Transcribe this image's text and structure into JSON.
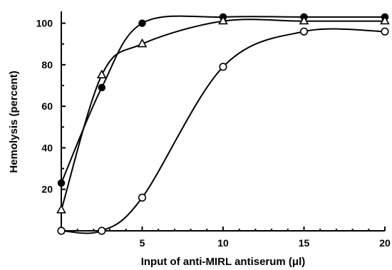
{
  "chart_data": {
    "type": "line",
    "title": "",
    "xlabel": "Input of anti-MIRL antiserum (μl)",
    "ylabel": "Hemolysis (percent)",
    "xlim": [
      0,
      20
    ],
    "ylim": [
      0,
      105
    ],
    "x_ticks": [
      5,
      10,
      15,
      20
    ],
    "y_ticks": [
      20,
      40,
      60,
      80,
      100
    ],
    "x_tick_labels": [
      "5",
      "10",
      "15",
      "20"
    ],
    "y_tick_labels": [
      "20",
      "40",
      "60",
      "80",
      "100"
    ],
    "grid": false,
    "legend": "none",
    "series": [
      {
        "marker": "filled-circle",
        "points": [
          {
            "x": 0,
            "y": 23
          },
          {
            "x": 2.5,
            "y": 69
          },
          {
            "x": 5,
            "y": 100
          },
          {
            "x": 10,
            "y": 103
          },
          {
            "x": 15,
            "y": 103
          },
          {
            "x": 20,
            "y": 103
          }
        ]
      },
      {
        "marker": "open-triangle",
        "points": [
          {
            "x": 0,
            "y": 10
          },
          {
            "x": 2.5,
            "y": 75
          },
          {
            "x": 5,
            "y": 90
          },
          {
            "x": 10,
            "y": 101
          },
          {
            "x": 15,
            "y": 101
          },
          {
            "x": 20,
            "y": 101
          }
        ]
      },
      {
        "marker": "open-circle",
        "points": [
          {
            "x": 0,
            "y": 0
          },
          {
            "x": 2.5,
            "y": 0
          },
          {
            "x": 5,
            "y": 16
          },
          {
            "x": 10,
            "y": 79
          },
          {
            "x": 15,
            "y": 96
          },
          {
            "x": 20,
            "y": 96
          }
        ]
      }
    ]
  }
}
